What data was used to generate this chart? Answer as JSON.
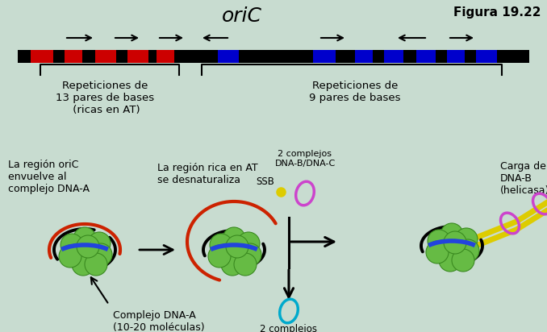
{
  "bg_color": "#c8dcd0",
  "title": "oriC",
  "figure_label": "Figura 19.22",
  "text_color": "#000000",
  "label1": "Repeticiones de\n13 pares de bases\n (ricas en AT)",
  "label2": "Repeticiones de\n9 pares de bases"
}
